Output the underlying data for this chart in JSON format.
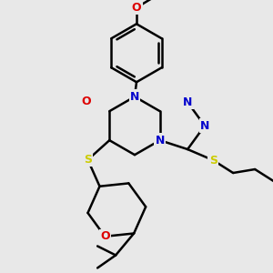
{
  "bg_color": "#e8e8e8",
  "bond_color": "#000000",
  "N_color": "#0000cc",
  "S_color": "#cccc00",
  "O_color": "#dd0000",
  "bond_width": 1.8,
  "dbo": 0.013,
  "figsize": [
    3.0,
    3.0
  ],
  "dpi": 100,
  "xlim": [
    0,
    300
  ],
  "ylim": [
    0,
    300
  ],
  "font_size": 9
}
